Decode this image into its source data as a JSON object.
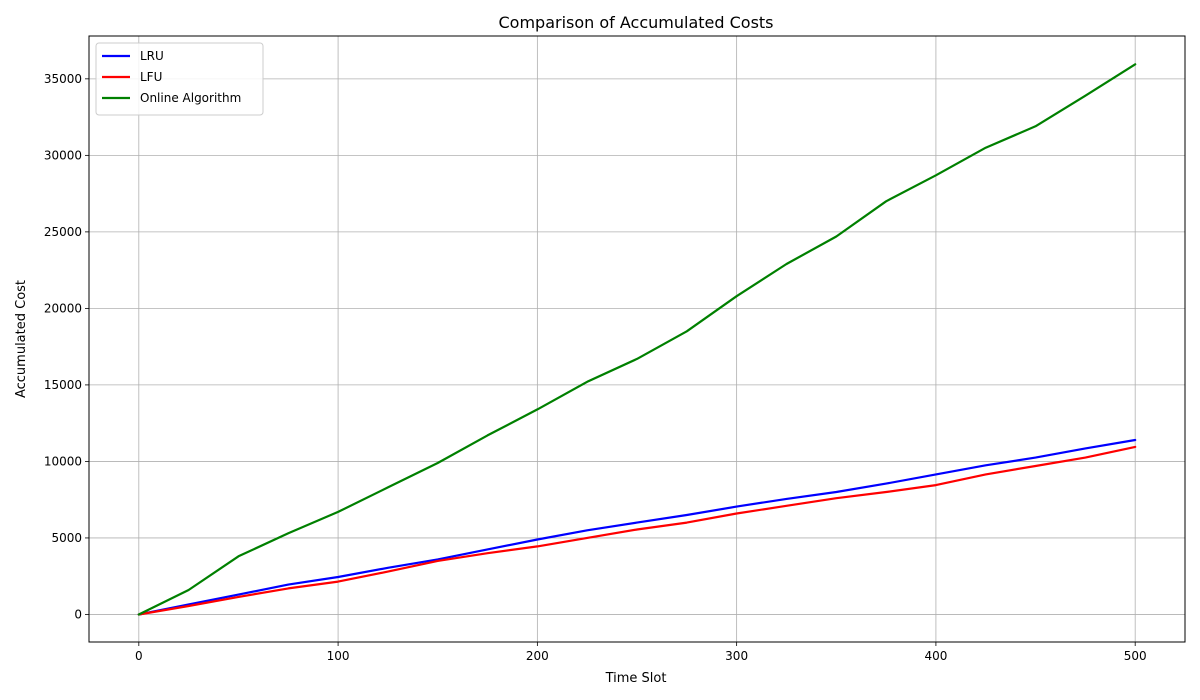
{
  "chart_data": {
    "type": "line",
    "title": "Comparison of Accumulated Costs",
    "xlabel": "Time Slot",
    "ylabel": "Accumulated Cost",
    "xlim": [
      -25,
      525
    ],
    "ylim": [
      -1800,
      37800
    ],
    "xticks": [
      0,
      100,
      200,
      300,
      400,
      500
    ],
    "yticks": [
      0,
      5000,
      10000,
      15000,
      20000,
      25000,
      30000,
      35000
    ],
    "grid": true,
    "legend_position": "top-left",
    "x": [
      0,
      25,
      50,
      75,
      100,
      125,
      150,
      175,
      200,
      225,
      250,
      275,
      300,
      325,
      350,
      375,
      400,
      425,
      450,
      475,
      500
    ],
    "series": [
      {
        "name": "LRU",
        "color": "#0000ff",
        "values": [
          0,
          650,
          1300,
          1950,
          2450,
          3050,
          3600,
          4250,
          4900,
          5500,
          6000,
          6500,
          7050,
          7550,
          8000,
          8550,
          9150,
          9750,
          10250,
          10850,
          11400
        ]
      },
      {
        "name": "LFU",
        "color": "#ff0000",
        "values": [
          0,
          550,
          1150,
          1700,
          2150,
          2800,
          3500,
          4000,
          4450,
          5000,
          5550,
          6000,
          6600,
          7100,
          7600,
          8000,
          8450,
          9150,
          9700,
          10250,
          10950
        ]
      },
      {
        "name": "Online Algorithm",
        "color": "#008000",
        "values": [
          0,
          1600,
          3800,
          5300,
          6700,
          8300,
          9900,
          11700,
          13400,
          15200,
          16700,
          18500,
          20800,
          22900,
          24700,
          27000,
          28700,
          30500,
          31900,
          33900,
          35950
        ]
      }
    ]
  }
}
